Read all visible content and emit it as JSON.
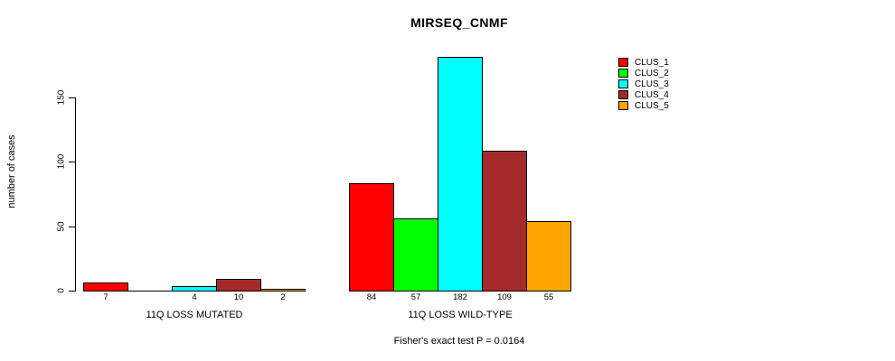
{
  "page": {
    "background": "#ffffff"
  },
  "chart_data": {
    "type": "bar",
    "title": "MIRSEQ_CNMF",
    "ylabel": "number of cases",
    "xlabel": "",
    "ylim": [
      0,
      150
    ],
    "yticks": [
      0,
      50,
      100,
      150
    ],
    "grid": false,
    "legend_position": "top-right",
    "categories": [
      "11Q LOSS MUTATED",
      "11Q LOSS WILD-TYPE"
    ],
    "series": [
      {
        "name": "CLUS_1",
        "color": "#ff0000",
        "values": [
          7,
          84
        ]
      },
      {
        "name": "CLUS_2",
        "color": "#00ff00",
        "values": [
          0,
          57
        ]
      },
      {
        "name": "CLUS_3",
        "color": "#00ffff",
        "values": [
          4,
          182
        ]
      },
      {
        "name": "CLUS_4",
        "color": "#a52a2a",
        "values": [
          10,
          109
        ]
      },
      {
        "name": "CLUS_5",
        "color": "#ffa500",
        "values": [
          2,
          55
        ]
      }
    ],
    "bar_value_labels": [
      [
        "7",
        "",
        "4",
        "10",
        "2"
      ],
      [
        "84",
        "57",
        "182",
        "109",
        "55"
      ]
    ],
    "footnote": "Fisher's exact test P = 0.0164"
  }
}
